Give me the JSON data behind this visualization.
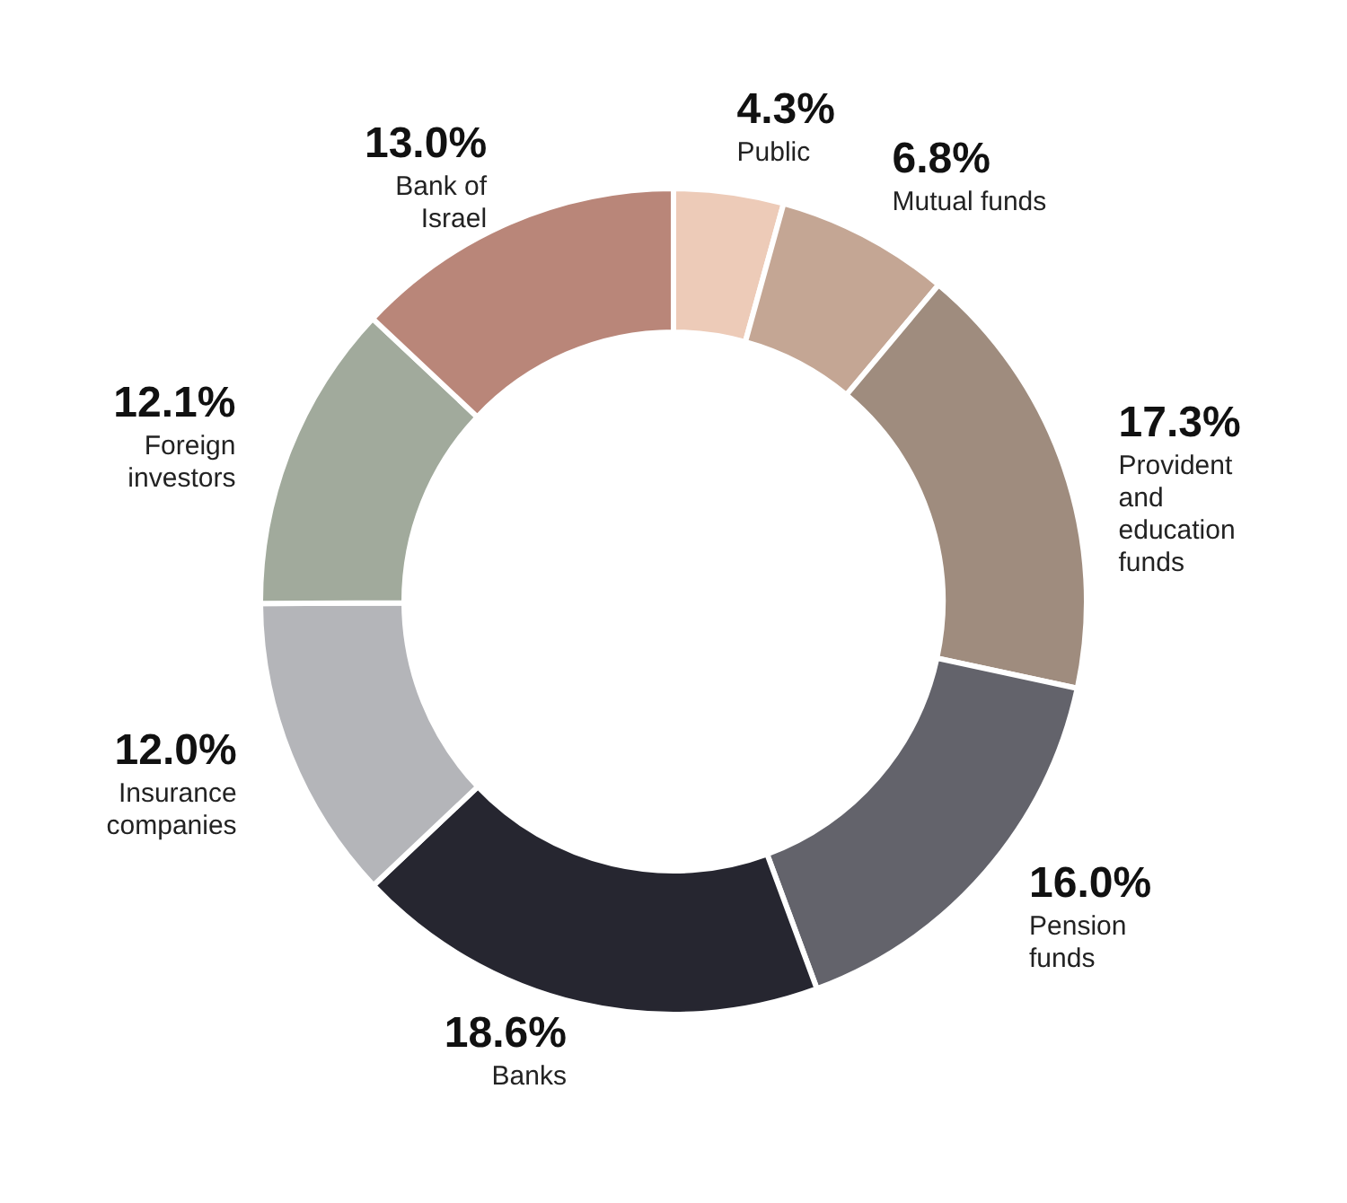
{
  "chart_data": {
    "type": "donut",
    "categories": [
      "Public",
      "Mutual funds",
      "Provident and education funds",
      "Pension funds",
      "Banks",
      "Insurance companies",
      "Foreign investors",
      "Bank of Israel"
    ],
    "values": [
      4.3,
      6.8,
      17.3,
      16.0,
      18.6,
      12.0,
      12.1,
      13.0
    ],
    "colors": [
      "#edcbb8",
      "#c4a694",
      "#9f8c7e",
      "#63636b",
      "#262630",
      "#b4b5b9",
      "#a1aa9c",
      "#b98679"
    ],
    "value_labels": [
      "4.3%",
      "6.8%",
      "17.3%",
      "16.0%",
      "18.6%",
      "12.0%",
      "12.1%",
      "13.0%"
    ],
    "legend": false
  }
}
